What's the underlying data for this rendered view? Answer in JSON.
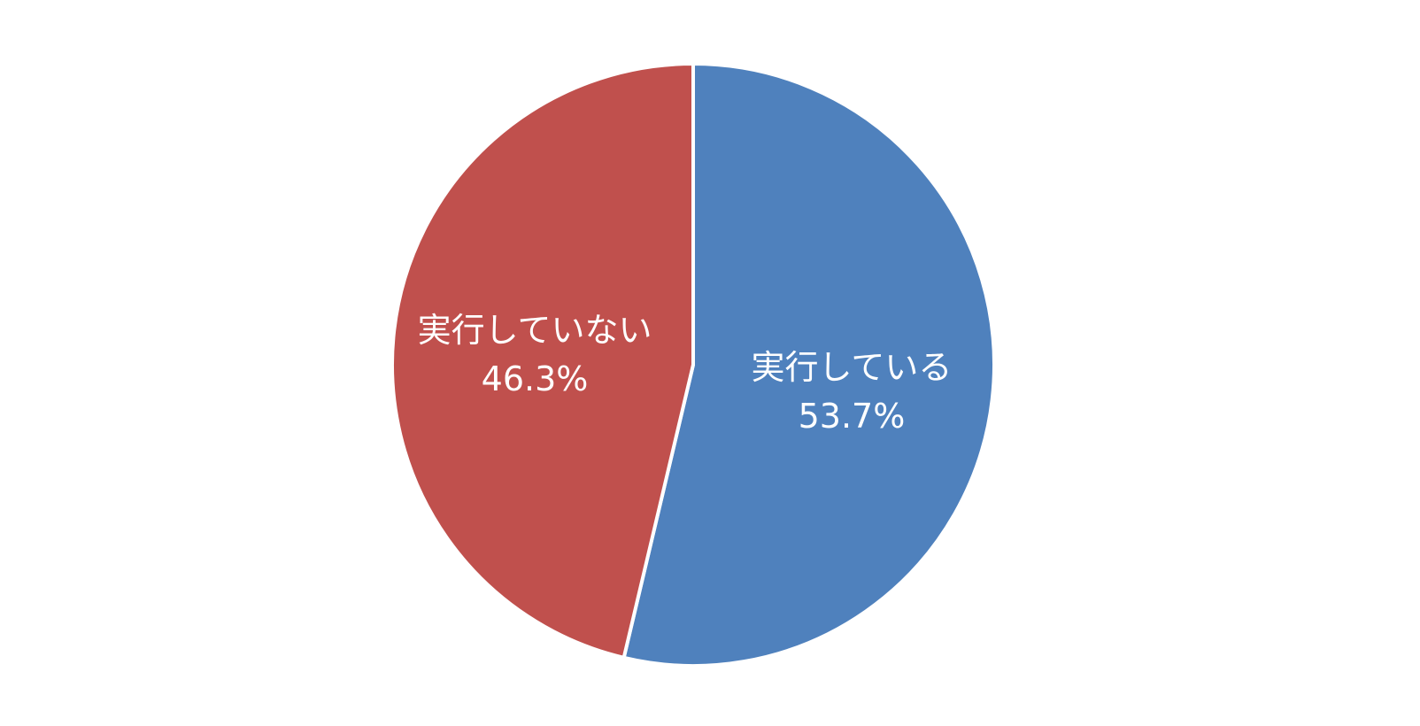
{
  "chart_data": {
    "type": "pie",
    "start_angle": "12 o'clock",
    "direction": "clockwise",
    "slices": [
      {
        "label": "実行している",
        "value": 53.7,
        "value_label": "53.7%",
        "color": "#4F81BD"
      },
      {
        "label": "実行していない",
        "value": 46.3,
        "value_label": "46.3%",
        "color": "#C0504D"
      }
    ],
    "legend": "none",
    "data_label_color": "#FFFFFF",
    "separator_color": "#FFFFFF"
  }
}
